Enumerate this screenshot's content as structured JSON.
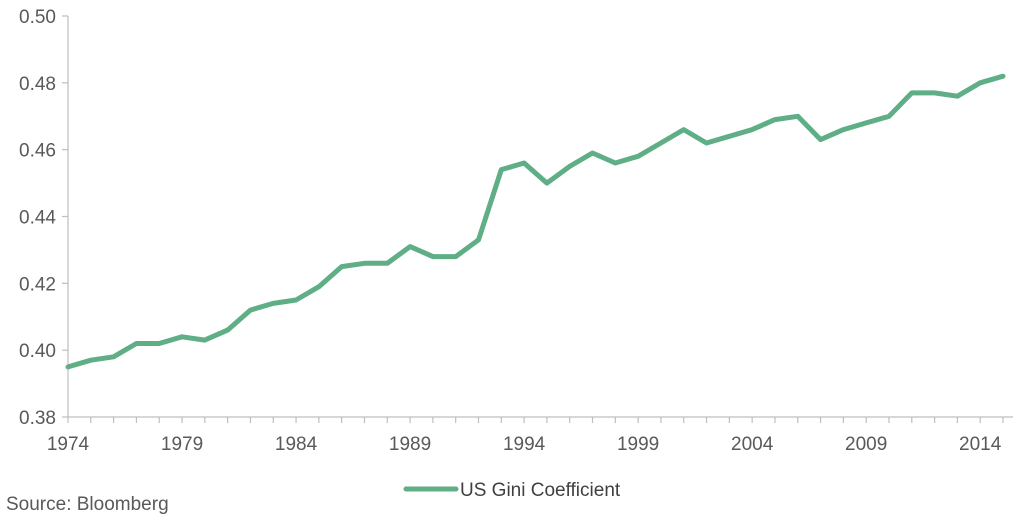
{
  "chart_data": {
    "type": "line",
    "title": "",
    "xlabel": "",
    "ylabel": "",
    "xlim": [
      1974,
      2015
    ],
    "ylim": [
      0.38,
      0.5
    ],
    "grid": false,
    "legend_position": "bottom-center",
    "x_tick_labels": [
      "1974",
      "1979",
      "1984",
      "1989",
      "1994",
      "1999",
      "2004",
      "2009",
      "2014"
    ],
    "y_tick_labels": [
      "0.38",
      "0.40",
      "0.42",
      "0.44",
      "0.46",
      "0.48",
      "0.50"
    ],
    "series": [
      {
        "name": "US Gini Coefficient",
        "color": "#5fae86",
        "x": [
          1974,
          1975,
          1976,
          1977,
          1978,
          1979,
          1980,
          1981,
          1982,
          1983,
          1984,
          1985,
          1986,
          1987,
          1988,
          1989,
          1990,
          1991,
          1992,
          1993,
          1994,
          1995,
          1996,
          1997,
          1998,
          1999,
          2000,
          2001,
          2002,
          2003,
          2004,
          2005,
          2006,
          2007,
          2008,
          2009,
          2010,
          2011,
          2012,
          2013,
          2014,
          2015
        ],
        "values": [
          0.395,
          0.397,
          0.398,
          0.402,
          0.402,
          0.404,
          0.403,
          0.406,
          0.412,
          0.414,
          0.415,
          0.419,
          0.425,
          0.426,
          0.426,
          0.431,
          0.428,
          0.428,
          0.433,
          0.454,
          0.456,
          0.45,
          0.455,
          0.459,
          0.456,
          0.458,
          0.462,
          0.466,
          0.462,
          0.464,
          0.466,
          0.469,
          0.47,
          0.463,
          0.466,
          0.468,
          0.47,
          0.477,
          0.477,
          0.476,
          0.48,
          0.482
        ]
      }
    ],
    "source_note": "Source: Bloomberg"
  }
}
